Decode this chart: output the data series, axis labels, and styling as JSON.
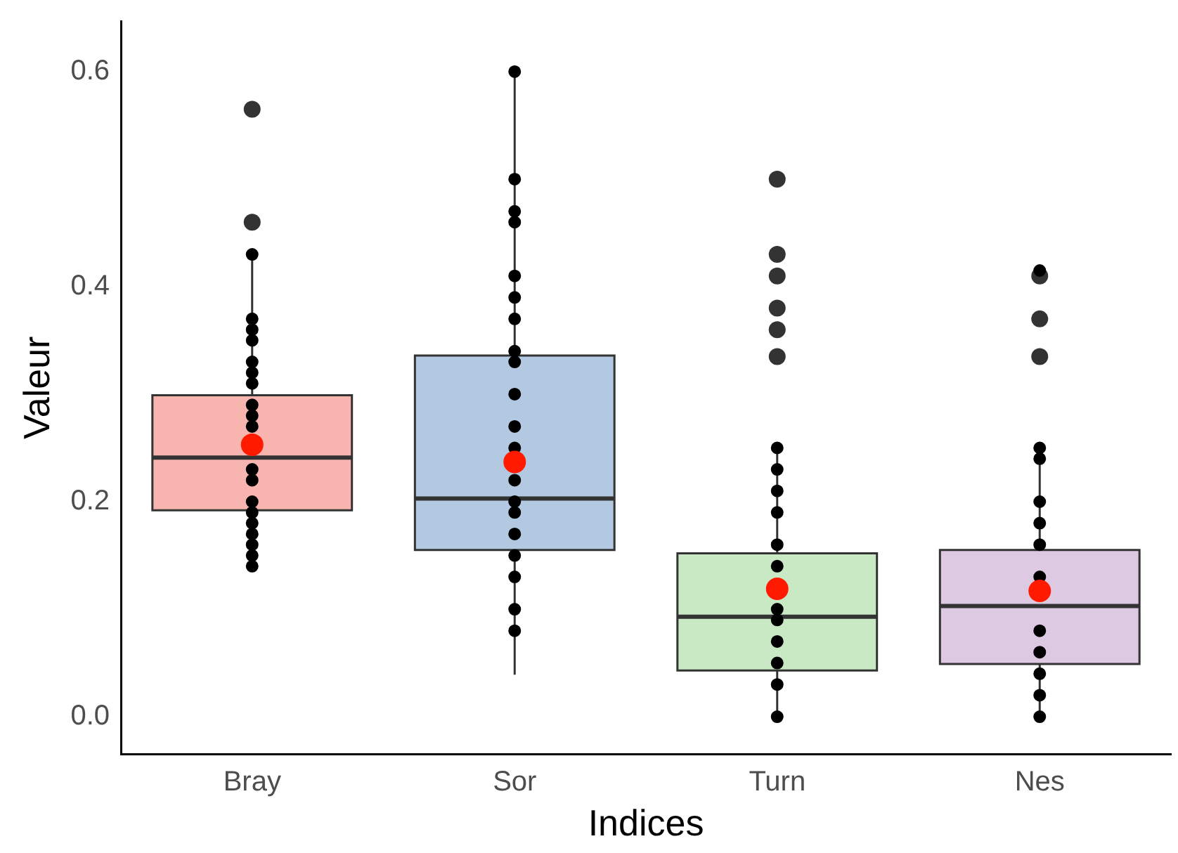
{
  "chart_data": {
    "type": "box",
    "xlabel": "Indices",
    "ylabel": "Valeur",
    "categories": [
      "Bray",
      "Sor",
      "Turn",
      "Nes"
    ],
    "colors": [
      "#f8b4ae",
      "#b3c9e1",
      "#c9e8c4",
      "#ddc9e2"
    ],
    "boxes": [
      {
        "low": 0.14,
        "q1": 0.192,
        "median": 0.241,
        "q3": 0.299,
        "high": 0.432,
        "mean": 0.253,
        "outliers": [
          0.565,
          0.46
        ]
      },
      {
        "low": 0.039,
        "q1": 0.155,
        "median": 0.203,
        "q3": 0.336,
        "high": 0.6,
        "mean": 0.237
      },
      {
        "low": 0.0,
        "q1": 0.043,
        "median": 0.093,
        "q3": 0.152,
        "high": 0.253,
        "mean": 0.119,
        "outliers": [
          0.5,
          0.43,
          0.41,
          0.38,
          0.36,
          0.335
        ]
      },
      {
        "low": 0.0,
        "q1": 0.049,
        "median": 0.103,
        "q3": 0.155,
        "high": 0.253,
        "mean": 0.117,
        "outliers": [
          0.41,
          0.37,
          0.335
        ]
      }
    ],
    "series": [
      {
        "type": "scatter",
        "color": "#000000",
        "x": [
          "Bray",
          "Bray",
          "Bray",
          "Bray",
          "Bray",
          "Bray",
          "Bray",
          "Bray",
          "Bray",
          "Bray",
          "Bray",
          "Bray",
          "Bray",
          "Bray",
          "Bray",
          "Bray",
          "Bray",
          "Bray",
          "Bray",
          "Sor",
          "Sor",
          "Sor",
          "Sor",
          "Sor",
          "Sor",
          "Sor",
          "Sor",
          "Sor",
          "Sor",
          "Sor",
          "Sor",
          "Sor",
          "Sor",
          "Sor",
          "Sor",
          "Sor",
          "Sor",
          "Sor",
          "Sor",
          "Turn",
          "Turn",
          "Turn",
          "Turn",
          "Turn",
          "Turn",
          "Turn",
          "Turn",
          "Turn",
          "Turn",
          "Turn",
          "Turn",
          "Nes",
          "Nes",
          "Nes",
          "Nes",
          "Nes",
          "Nes",
          "Nes",
          "Nes",
          "Nes",
          "Nes",
          "Nes",
          "Nes"
        ],
        "values": [
          0.43,
          0.37,
          0.36,
          0.35,
          0.33,
          0.32,
          0.31,
          0.29,
          0.28,
          0.27,
          0.23,
          0.22,
          0.2,
          0.19,
          0.18,
          0.17,
          0.16,
          0.15,
          0.14,
          0.6,
          0.5,
          0.47,
          0.46,
          0.41,
          0.39,
          0.37,
          0.34,
          0.33,
          0.3,
          0.27,
          0.25,
          0.22,
          0.2,
          0.19,
          0.17,
          0.15,
          0.13,
          0.1,
          0.08,
          0.25,
          0.23,
          0.21,
          0.19,
          0.16,
          0.14,
          0.1,
          0.09,
          0.07,
          0.05,
          0.03,
          0.0,
          0.415,
          0.25,
          0.24,
          0.2,
          0.18,
          0.16,
          0.13,
          0.08,
          0.06,
          0.04,
          0.02,
          0.0
        ]
      }
    ],
    "ylim": [
      -0.035,
      0.647
    ],
    "yticks": [
      {
        "value": 0,
        "label": "0.0"
      },
      {
        "value": 0.2,
        "label": "0.2"
      },
      {
        "value": 0.4,
        "label": "0.4"
      },
      {
        "value": 0.6,
        "label": "0.6"
      }
    ],
    "grid": false,
    "legend": false
  }
}
